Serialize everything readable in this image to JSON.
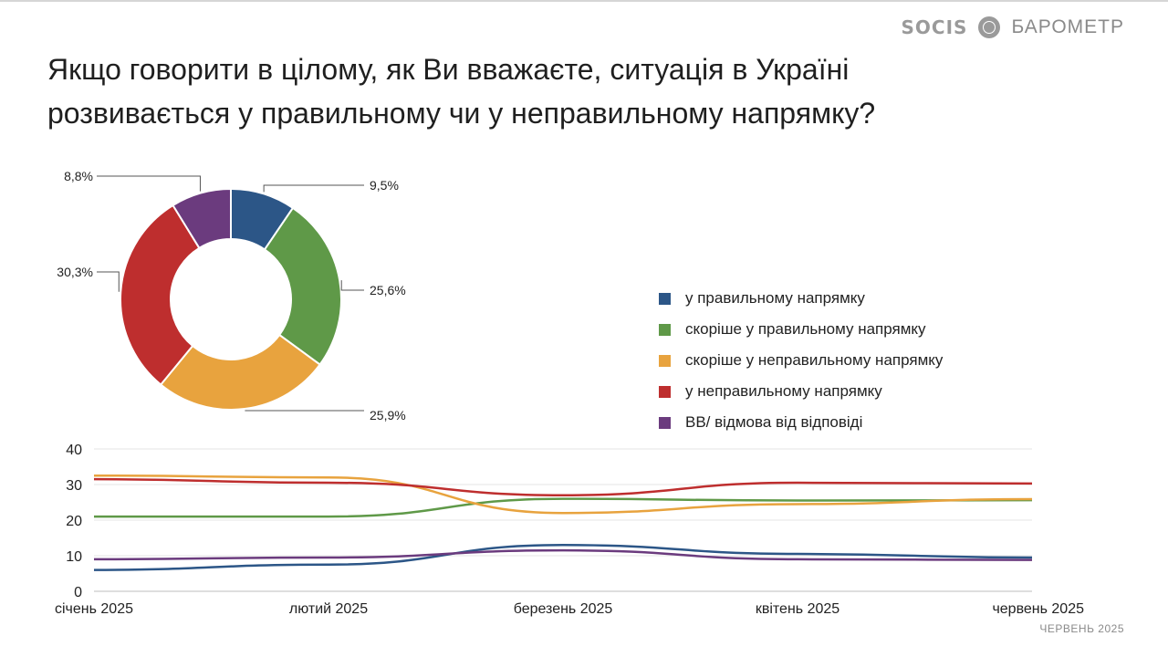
{
  "brand": {
    "logo": "SOCIS",
    "name": "БАРОМЕТР"
  },
  "title_line1": "Якщо говорити в цілому, як Ви вважаєте, ситуація в Україні",
  "title_line2": "розвивається у правильному чи у неправильному напрямку?",
  "footer": "ЧЕРВЕНЬ 2025",
  "chart_data": [
    {
      "type": "pie",
      "title": "",
      "categories": [
        "у правильному напрямку",
        "скоріше у правильному напрямку",
        "скоріше у неправильному напрямку",
        "у неправильному напрямку",
        "ВВ/ відмова від відповіді"
      ],
      "values": [
        9.5,
        25.6,
        25.9,
        30.3,
        8.8
      ],
      "labels": [
        "9,5%",
        "25,6%",
        "25,9%",
        "30,3%",
        "8,8%"
      ],
      "colors": [
        "#2c5687",
        "#5f9948",
        "#e8a33e",
        "#be2e2e",
        "#6b3b7e"
      ],
      "donut": true,
      "legend_position": "right"
    },
    {
      "type": "line",
      "title": "",
      "xlabel": "",
      "ylabel": "",
      "categories": [
        "січень 2025",
        "лютий 2025",
        "березень 2025",
        "квітень 2025",
        "червень 2025"
      ],
      "ylim": [
        0,
        40
      ],
      "yticks": [
        0,
        10,
        20,
        30,
        40
      ],
      "grid": true,
      "smooth": true,
      "series": [
        {
          "name": "у правильному напрямку",
          "color": "#2c5687",
          "values": [
            6,
            7.5,
            13,
            10.5,
            9.5
          ]
        },
        {
          "name": "скоріше у правильному напрямку",
          "color": "#5f9948",
          "values": [
            21,
            21,
            26,
            25.5,
            25.6
          ]
        },
        {
          "name": "скоріше у неправильному напрямку",
          "color": "#e8a33e",
          "values": [
            32.5,
            32,
            22,
            24.5,
            25.9
          ]
        },
        {
          "name": "у неправильному напрямку",
          "color": "#be2e2e",
          "values": [
            31.5,
            30.5,
            27,
            30.5,
            30.3
          ]
        },
        {
          "name": "ВВ/ відмова від відповіді",
          "color": "#6b3b7e",
          "values": [
            9,
            9.5,
            11.5,
            9,
            8.8
          ]
        }
      ]
    }
  ]
}
